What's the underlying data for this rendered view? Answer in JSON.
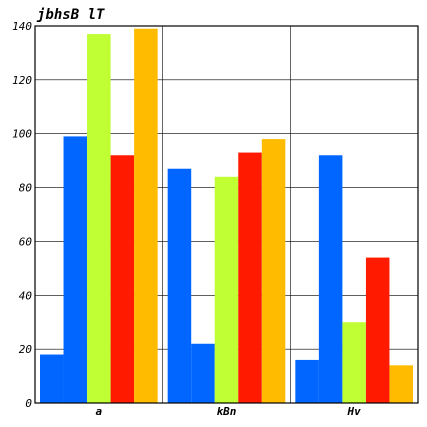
{
  "chart_data": {
    "type": "bar",
    "title": "jbhsB lT",
    "xlabel": "",
    "ylabel": "",
    "categories": [
      "a",
      "kBn",
      "Hv"
    ],
    "series": [
      {
        "color": "#0066ff",
        "values": [
          18,
          87,
          16
        ]
      },
      {
        "color": "#0066ff",
        "values": [
          99,
          22,
          92
        ]
      },
      {
        "color": "#bfff33",
        "values": [
          137,
          84,
          30
        ]
      },
      {
        "color": "#ff1a00",
        "values": [
          92,
          93,
          54
        ]
      },
      {
        "color": "#ffbb00",
        "values": [
          139,
          98,
          14
        ]
      }
    ],
    "ylim": [
      0,
      140
    ],
    "yticks": [
      0,
      20,
      40,
      60,
      80,
      100,
      120,
      140
    ],
    "grid": true,
    "legend": "none"
  }
}
